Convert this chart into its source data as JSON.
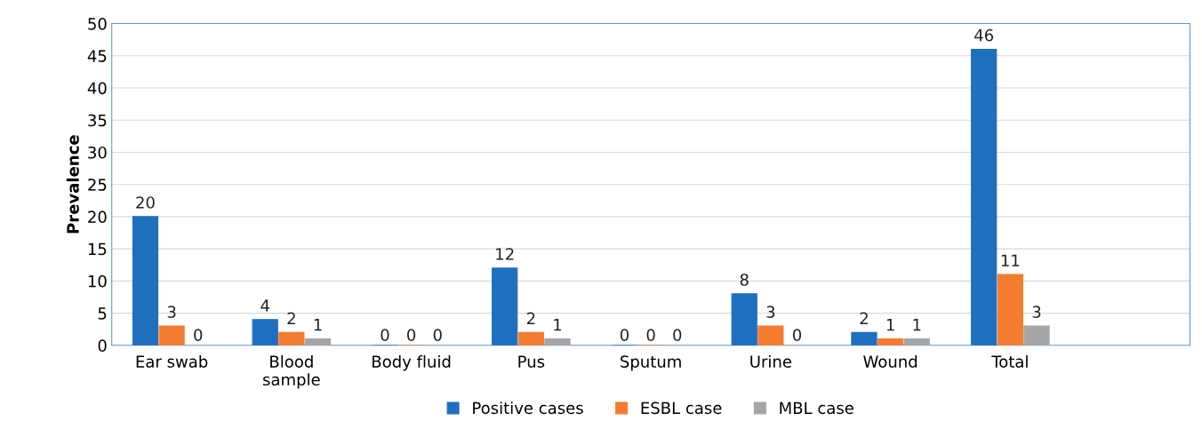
{
  "chart_data": {
    "type": "bar",
    "ylabel": "Prevalence",
    "categories": [
      "Ear swab",
      "Blood\nsample",
      "Body fluid",
      "Pus",
      "Sputum",
      "Urine",
      "Wound",
      "Total",
      null
    ],
    "series": [
      {
        "name": "Positive cases",
        "color": "#1f6fbf",
        "values": [
          20,
          4,
          0,
          12,
          0,
          8,
          2,
          46,
          null
        ]
      },
      {
        "name": "ESBL case",
        "color": "#f47c30",
        "values": [
          3,
          2,
          0,
          2,
          0,
          3,
          1,
          11,
          null
        ]
      },
      {
        "name": "MBL case",
        "color": "#a5a5a5",
        "values": [
          0,
          1,
          0,
          1,
          0,
          0,
          1,
          3,
          null
        ]
      }
    ],
    "ylim": [
      0,
      50
    ],
    "yticks": [
      0,
      5,
      10,
      15,
      20,
      25,
      30,
      35,
      40,
      45,
      50
    ],
    "grid": "y",
    "legend": "bottom",
    "data_labels": true
  }
}
